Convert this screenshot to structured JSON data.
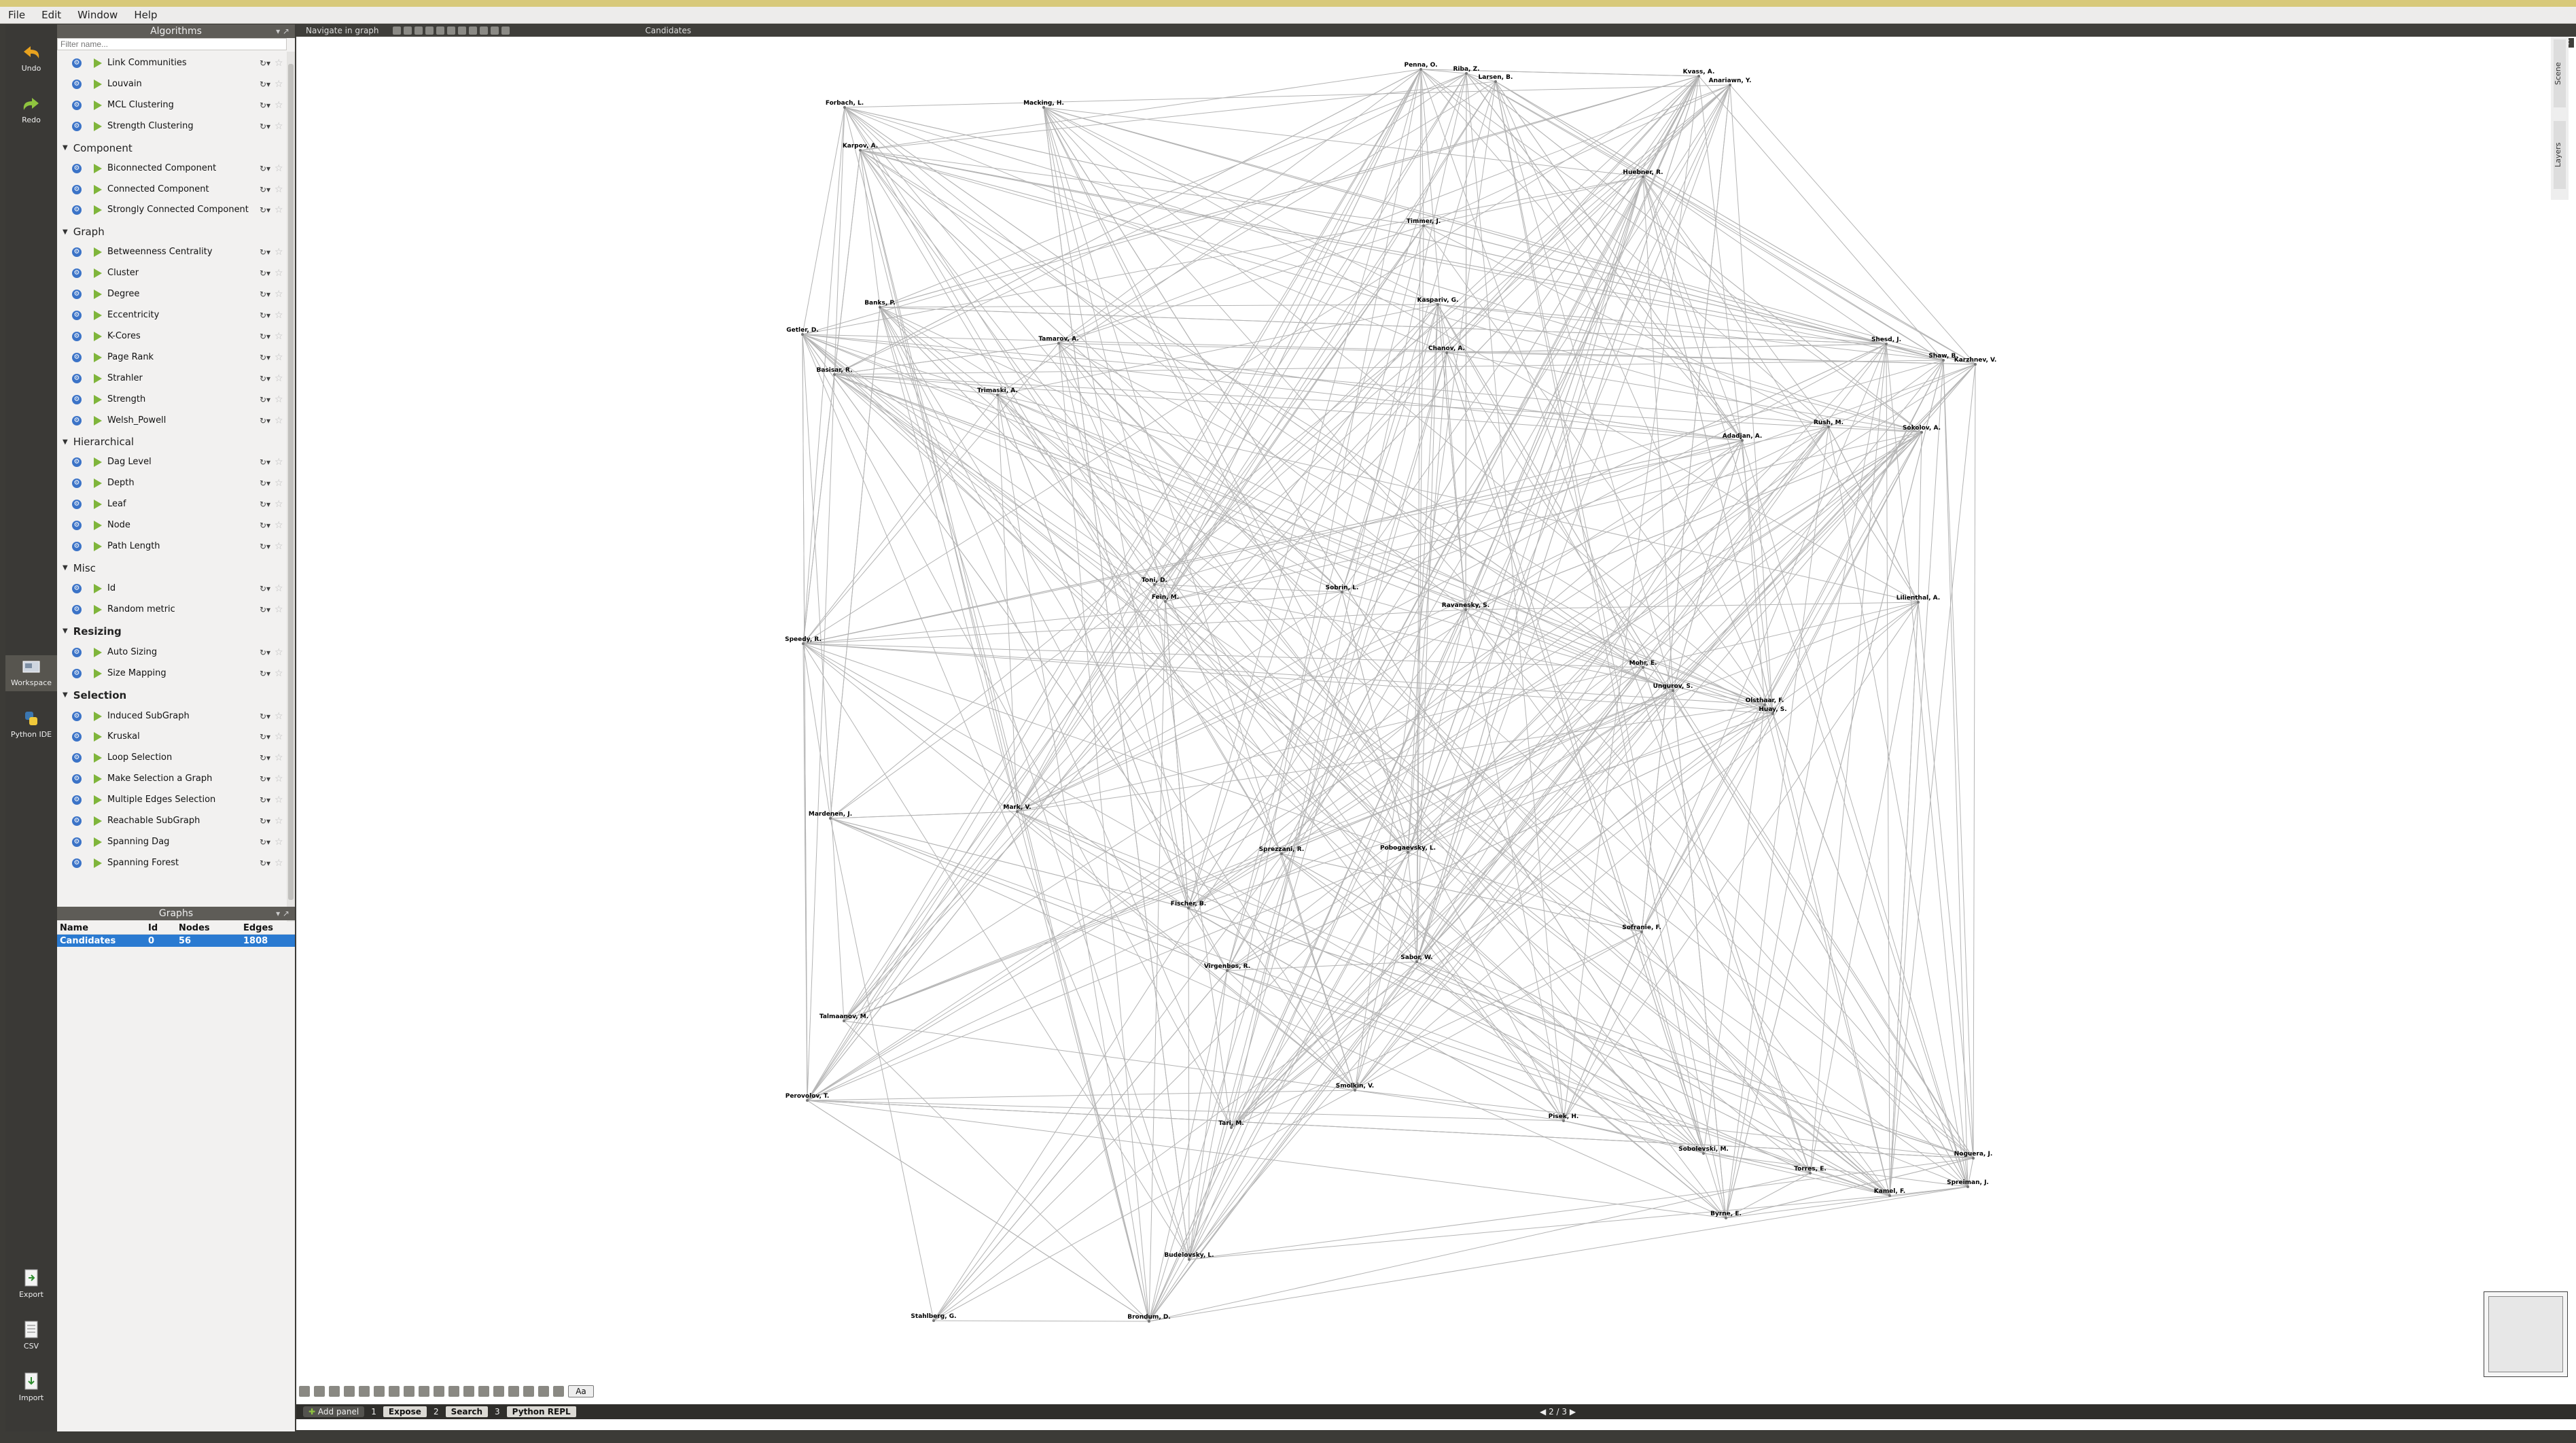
{
  "menubar": {
    "items": [
      "File",
      "Edit",
      "Window",
      "Help"
    ]
  },
  "leftbar": {
    "top": [
      {
        "label": "Undo"
      },
      {
        "label": "Redo"
      }
    ],
    "middle": [
      {
        "label": "Workspace"
      },
      {
        "label": "Python IDE"
      }
    ],
    "bottom": [
      {
        "label": "Export"
      },
      {
        "label": "CSV"
      },
      {
        "label": "Import"
      }
    ]
  },
  "algorithms": {
    "header": "Algorithms",
    "filter_placeholder": "Filter name...",
    "rows": [
      {
        "type": "item",
        "label": "Link Communities"
      },
      {
        "type": "item",
        "label": "Louvain"
      },
      {
        "type": "item",
        "label": "MCL Clustering"
      },
      {
        "type": "item",
        "label": "Strength Clustering"
      },
      {
        "type": "cat",
        "label": "Component"
      },
      {
        "type": "item",
        "label": "Biconnected Component"
      },
      {
        "type": "item",
        "label": "Connected Component"
      },
      {
        "type": "item",
        "label": "Strongly Connected Component"
      },
      {
        "type": "cat",
        "label": "Graph"
      },
      {
        "type": "item",
        "label": "Betweenness Centrality"
      },
      {
        "type": "item",
        "label": "Cluster"
      },
      {
        "type": "item",
        "label": "Degree"
      },
      {
        "type": "item",
        "label": "Eccentricity"
      },
      {
        "type": "item",
        "label": "K-Cores"
      },
      {
        "type": "item",
        "label": "Page Rank"
      },
      {
        "type": "item",
        "label": "Strahler"
      },
      {
        "type": "item",
        "label": "Strength"
      },
      {
        "type": "item",
        "label": "Welsh_Powell"
      },
      {
        "type": "cat",
        "label": "Hierarchical"
      },
      {
        "type": "item",
        "label": "Dag Level"
      },
      {
        "type": "item",
        "label": "Depth"
      },
      {
        "type": "item",
        "label": "Leaf"
      },
      {
        "type": "item",
        "label": "Node"
      },
      {
        "type": "item",
        "label": "Path Length"
      },
      {
        "type": "cat",
        "label": "Misc"
      },
      {
        "type": "item",
        "label": "Id"
      },
      {
        "type": "item",
        "label": "Random metric"
      },
      {
        "type": "big",
        "label": "Resizing"
      },
      {
        "type": "item",
        "label": "Auto Sizing"
      },
      {
        "type": "item",
        "label": "Size Mapping"
      },
      {
        "type": "big",
        "label": "Selection"
      },
      {
        "type": "item",
        "label": "Induced SubGraph"
      },
      {
        "type": "item",
        "label": "Kruskal"
      },
      {
        "type": "item",
        "label": "Loop Selection"
      },
      {
        "type": "item",
        "label": "Make Selection a Graph"
      },
      {
        "type": "item",
        "label": "Multiple Edges Selection"
      },
      {
        "type": "item",
        "label": "Reachable SubGraph"
      },
      {
        "type": "item",
        "label": "Spanning Dag"
      },
      {
        "type": "item",
        "label": "Spanning Forest"
      }
    ]
  },
  "graphs": {
    "header": "Graphs",
    "columns": [
      "Name",
      "Id",
      "Nodes",
      "Edges"
    ],
    "rows": [
      {
        "name": "Candidates",
        "id": "0",
        "nodes": "56",
        "edges": "1808"
      }
    ]
  },
  "view": {
    "nav_label": "Navigate in graph",
    "title": "Candidates"
  },
  "dock_tabs": [
    "Scene",
    "Layers"
  ],
  "bottombar": {
    "add_panel": "Add panel",
    "tabs": [
      "Expose",
      "Search",
      "Python REPL"
    ],
    "tab_numbers": [
      "1",
      "2",
      "3"
    ],
    "pager": "2 / 3"
  },
  "graph_nodes": [
    "Penna, O.",
    "Riba, Z.",
    "Larsen, B.",
    "Kvass, A.",
    "Anariawn, Y.",
    "Forbach, L.",
    "Macking, H.",
    "Karpov, A.",
    "Huebner, R.",
    "Timmer, J.",
    "Banks, P.",
    "Kaspariv, G.",
    "Shesd, J.",
    "Tamarov, A.",
    "Chanov, A.",
    "Getler, D.",
    "Basisar, R.",
    "Shaw, B.",
    "Karzhnev, V.",
    "Trimaski, A.",
    "Rush, M.",
    "Sokolov, A.",
    "Adadjan, A.",
    "Toni, D.",
    "Fein, M.",
    "Sobrin, L.",
    "Ravanesky, S.",
    "Lilienthal, A.",
    "Speedy, R.",
    "Mohr, E.",
    "Ungurov, S.",
    "Olsthaar, F.",
    "Huay, S.",
    "Mark, V.",
    "Mardenen, J.",
    "Sprezzani, R.",
    "Pobogaevsky, L.",
    "Fischer, B.",
    "Sofranie, F.",
    "Virgenbos, R.",
    "Sabor, W.",
    "Talmaanov, M.",
    "Perovolov, T.",
    "Smolkin, V.",
    "Pisek, H.",
    "Tari, M.",
    "Sobolevski, M.",
    "Torres, E.",
    "Noguera, J.",
    "Spreiman, J.",
    "Kamel, F.",
    "Byrne, E.",
    "Budelovsky, L.",
    "Stahlberg, G.",
    "Brondum, D."
  ]
}
